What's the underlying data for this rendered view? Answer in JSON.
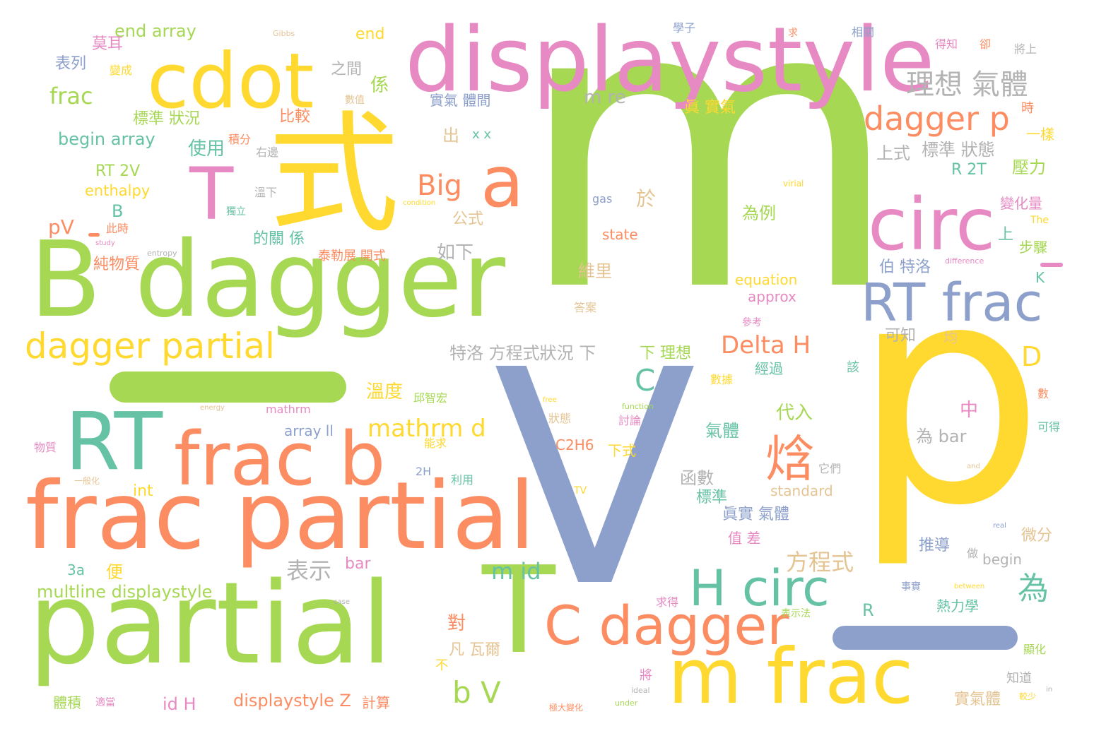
{
  "palette": {
    "green": "#a6d854",
    "pink": "#e78ac3",
    "yellow": "#ffd92f",
    "orange": "#fc8d62",
    "blue": "#8da0cb",
    "teal": "#66c2a5",
    "tan": "#e5c494",
    "grey": "#b3b3b3"
  },
  "words": [
    {
      "text": "m",
      "color": "green"
    },
    {
      "text": "V",
      "color": "blue"
    },
    {
      "text": "p",
      "color": "yellow"
    },
    {
      "text": "式",
      "color": "yellow"
    },
    {
      "text": "B dagger",
      "color": "green"
    },
    {
      "text": "displaystyle",
      "color": "pink"
    },
    {
      "text": "cdot",
      "color": "yellow"
    },
    {
      "text": "T",
      "color": "pink"
    },
    {
      "text": "a",
      "color": "orange"
    },
    {
      "text": "circ",
      "color": "pink"
    },
    {
      "text": "RT frac",
      "color": "blue"
    },
    {
      "text": "RT",
      "color": "teal"
    },
    {
      "text": "frac b",
      "color": "orange"
    },
    {
      "text": "frac partial",
      "color": "orange"
    },
    {
      "text": "partial",
      "color": "green"
    },
    {
      "text": "T",
      "color": "green"
    },
    {
      "text": "C dagger",
      "color": "orange"
    },
    {
      "text": "m frac",
      "color": "yellow"
    },
    {
      "text": "H circ",
      "color": "teal"
    },
    {
      "text": "焓",
      "color": "orange"
    },
    {
      "text": "dagger partial",
      "color": "yellow"
    },
    {
      "text": "dagger p",
      "color": "orange"
    },
    {
      "text": "理想 氣體",
      "color": "grey"
    },
    {
      "text": "Big",
      "color": "orange"
    },
    {
      "text": "為",
      "color": "teal"
    },
    {
      "text": "C",
      "color": "teal"
    },
    {
      "text": "D",
      "color": "yellow"
    },
    {
      "text": "Delta H",
      "color": "orange"
    },
    {
      "text": "mathrm d",
      "color": "yellow"
    },
    {
      "text": "b V",
      "color": "green"
    },
    {
      "text": "m id",
      "color": "teal"
    },
    {
      "text": "方程式",
      "color": "tan"
    },
    {
      "text": "表示",
      "color": "grey"
    },
    {
      "text": "frac",
      "color": "green"
    },
    {
      "text": "end array",
      "color": "green"
    },
    {
      "text": "begin array",
      "color": "teal"
    },
    {
      "text": "標準 狀況",
      "color": "green"
    },
    {
      "text": "使用",
      "color": "teal"
    },
    {
      "text": "RT 2V",
      "color": "green"
    },
    {
      "text": "enthalpy",
      "color": "yellow"
    },
    {
      "text": "pV",
      "color": "orange"
    },
    {
      "text": "B",
      "color": "teal"
    },
    {
      "text": "純物質",
      "color": "orange"
    },
    {
      "text": "比較",
      "color": "orange"
    },
    {
      "text": "表列",
      "color": "blue"
    },
    {
      "text": "莫耳",
      "color": "pink"
    },
    {
      "text": "之間",
      "color": "grey"
    },
    {
      "text": "係",
      "color": "green"
    },
    {
      "text": "end",
      "color": "yellow"
    },
    {
      "text": "實氣 體間",
      "color": "blue"
    },
    {
      "text": "m re",
      "color": "grey"
    },
    {
      "text": "眞 實氣",
      "color": "yellow"
    },
    {
      "text": "上式",
      "color": "grey"
    },
    {
      "text": "標準 狀態",
      "color": "grey"
    },
    {
      "text": "壓力",
      "color": "green"
    },
    {
      "text": "R 2T",
      "color": "teal"
    },
    {
      "text": "變化量",
      "color": "pink"
    },
    {
      "text": "步驟",
      "color": "green"
    },
    {
      "text": "於",
      "color": "tan"
    },
    {
      "text": "state",
      "color": "orange"
    },
    {
      "text": "為例",
      "color": "green"
    },
    {
      "text": "如下",
      "color": "grey"
    },
    {
      "text": "維里",
      "color": "tan"
    },
    {
      "text": "equation",
      "color": "yellow"
    },
    {
      "text": "approx",
      "color": "pink"
    },
    {
      "text": "伯 特洛",
      "color": "blue"
    },
    {
      "text": "上",
      "color": "teal"
    },
    {
      "text": "K",
      "color": "teal"
    },
    {
      "text": "可知",
      "color": "grey"
    },
    {
      "text": "特洛 方程式狀況 下",
      "color": "grey"
    },
    {
      "text": "下 理想",
      "color": "green"
    },
    {
      "text": "經過",
      "color": "teal"
    },
    {
      "text": "溫度",
      "color": "yellow"
    },
    {
      "text": "代入",
      "color": "green"
    },
    {
      "text": "中",
      "color": "pink"
    },
    {
      "text": "氣體",
      "color": "teal"
    },
    {
      "text": "S",
      "color": "yellow"
    },
    {
      "text": "為 bar",
      "color": "grey"
    },
    {
      "text": "C2H6",
      "color": "orange"
    },
    {
      "text": "下式",
      "color": "yellow"
    },
    {
      "text": "函數",
      "color": "grey"
    },
    {
      "text": "標準",
      "color": "teal"
    },
    {
      "text": "眞實 氣體",
      "color": "blue"
    },
    {
      "text": "值 差",
      "color": "pink"
    },
    {
      "text": "standard",
      "color": "tan"
    },
    {
      "text": "推導",
      "color": "blue"
    },
    {
      "text": "微分",
      "color": "tan"
    },
    {
      "text": "begin",
      "color": "grey"
    },
    {
      "text": "熱力學",
      "color": "teal"
    },
    {
      "text": "R",
      "color": "teal"
    },
    {
      "text": "對",
      "color": "orange"
    },
    {
      "text": "凡 瓦爾",
      "color": "tan"
    },
    {
      "text": "array ll",
      "color": "blue"
    },
    {
      "text": "int",
      "color": "yellow"
    },
    {
      "text": "便",
      "color": "yellow"
    },
    {
      "text": "3a",
      "color": "teal"
    },
    {
      "text": "bar",
      "color": "pink"
    },
    {
      "text": "multline displaystyle",
      "color": "green"
    },
    {
      "text": "id H",
      "color": "pink"
    },
    {
      "text": "displaystyle Z",
      "color": "orange"
    },
    {
      "text": "計算",
      "color": "orange"
    },
    {
      "text": "體積",
      "color": "green"
    },
    {
      "text": "實氣體",
      "color": "tan"
    },
    {
      "text": "出",
      "color": "tan"
    },
    {
      "text": "公式",
      "color": "tan"
    },
    {
      "text": "的關 係",
      "color": "teal"
    },
    {
      "text": "泰勒展 開式",
      "color": "orange"
    },
    {
      "text": "x x",
      "color": "teal"
    },
    {
      "text": "gas",
      "color": "blue"
    },
    {
      "text": "變成",
      "color": "yellow"
    },
    {
      "text": "積分",
      "color": "orange"
    },
    {
      "text": "右邊",
      "color": "grey"
    },
    {
      "text": "溫下",
      "color": "grey"
    },
    {
      "text": "獨立",
      "color": "teal"
    },
    {
      "text": "此時",
      "color": "orange"
    },
    {
      "text": "時",
      "color": "orange"
    },
    {
      "text": "一樣",
      "color": "yellow"
    },
    {
      "text": "得知",
      "color": "pink"
    },
    {
      "text": "卻",
      "color": "orange"
    },
    {
      "text": "將上",
      "color": "grey"
    },
    {
      "text": "相關",
      "color": "blue"
    },
    {
      "text": "求",
      "color": "orange"
    },
    {
      "text": "學子",
      "color": "blue"
    },
    {
      "text": "數值",
      "color": "tan"
    },
    {
      "text": "The",
      "color": "yellow"
    },
    {
      "text": "均",
      "color": "tan"
    },
    {
      "text": "該",
      "color": "teal"
    },
    {
      "text": "數據",
      "color": "yellow"
    },
    {
      "text": "可得",
      "color": "teal"
    },
    {
      "text": "數",
      "color": "orange"
    },
    {
      "text": "Gibbs",
      "color": "tan"
    },
    {
      "text": "virial",
      "color": "yellow"
    },
    {
      "text": "condition",
      "color": "yellow"
    },
    {
      "text": "study",
      "color": "pink"
    },
    {
      "text": "entropy",
      "color": "grey"
    },
    {
      "text": "difference",
      "color": "pink"
    },
    {
      "text": "free",
      "color": "yellow"
    },
    {
      "text": "function",
      "color": "green"
    },
    {
      "text": "energy",
      "color": "tan"
    },
    {
      "text": "mathrm",
      "color": "pink"
    },
    {
      "text": "邱智宏",
      "color": "green"
    },
    {
      "text": "物質",
      "color": "pink"
    },
    {
      "text": "能求",
      "color": "yellow"
    },
    {
      "text": "2H",
      "color": "blue"
    },
    {
      "text": "利用",
      "color": "teal"
    },
    {
      "text": "一般化",
      "color": "tan"
    },
    {
      "text": "它們",
      "color": "grey"
    },
    {
      "text": "討論",
      "color": "pink"
    },
    {
      "text": "狀態",
      "color": "tan"
    },
    {
      "text": "TV",
      "color": "yellow"
    },
    {
      "text": "and",
      "color": "tan"
    },
    {
      "text": "real",
      "color": "blue"
    },
    {
      "text": "between",
      "color": "yellow"
    },
    {
      "text": "case",
      "color": "grey"
    },
    {
      "text": "ideal",
      "color": "grey"
    },
    {
      "text": "under",
      "color": "green"
    },
    {
      "text": "in",
      "color": "grey"
    },
    {
      "text": "求得",
      "color": "pink"
    },
    {
      "text": "表示法",
      "color": "green"
    },
    {
      "text": "事實",
      "color": "blue"
    },
    {
      "text": "答案",
      "color": "tan"
    },
    {
      "text": "參考",
      "color": "pink"
    },
    {
      "text": "做",
      "color": "grey"
    },
    {
      "text": "知道",
      "color": "grey"
    },
    {
      "text": "不",
      "color": "yellow"
    },
    {
      "text": "將",
      "color": "pink"
    },
    {
      "text": "適當",
      "color": "pink"
    },
    {
      "text": "極大變化",
      "color": "orange"
    },
    {
      "text": "顯化",
      "color": "green"
    },
    {
      "text": "較少",
      "color": "yellow"
    }
  ]
}
